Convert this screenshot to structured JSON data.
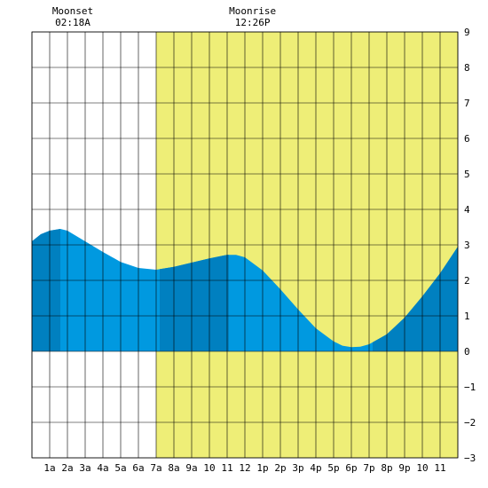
{
  "chart_data": {
    "type": "area",
    "title": "",
    "xlabel": "",
    "ylabel": "",
    "xlim": [
      0,
      24
    ],
    "ylim": [
      -3,
      9
    ],
    "yticks": [
      "9",
      "8",
      "7",
      "6",
      "5",
      "4",
      "3",
      "2",
      "1",
      "0",
      "−1",
      "−2",
      "−3"
    ],
    "xticks": [
      "1a",
      "2a",
      "3a",
      "4a",
      "5a",
      "6a",
      "7a",
      "8a",
      "9a",
      "10",
      "11",
      "12",
      "1p",
      "2p",
      "3p",
      "4p",
      "5p",
      "6p",
      "7p",
      "8p",
      "9p",
      "10",
      "11"
    ],
    "daylight": {
      "start": 7.0,
      "end": 24,
      "color": "#eeee77"
    },
    "night_color": "#ffffff",
    "grid": true,
    "annotations": [
      {
        "label": "Moonset",
        "time": "02:18A",
        "x": 2.3
      },
      {
        "label": "Moonrise",
        "time": "12:26P",
        "x": 12.43
      }
    ],
    "series": [
      {
        "values": [
          [
            0.0,
            3.1
          ],
          [
            0.5,
            3.3
          ],
          [
            1.0,
            3.4
          ],
          [
            1.6,
            3.45
          ],
          [
            2.0,
            3.4
          ],
          [
            3.0,
            3.1
          ],
          [
            4.0,
            2.8
          ],
          [
            5.0,
            2.52
          ],
          [
            6.0,
            2.35
          ],
          [
            7.0,
            2.3
          ],
          [
            8.0,
            2.38
          ],
          [
            9.0,
            2.5
          ],
          [
            10.0,
            2.62
          ],
          [
            11.0,
            2.72
          ],
          [
            11.5,
            2.72
          ],
          [
            12.0,
            2.65
          ],
          [
            13.0,
            2.28
          ],
          [
            14.0,
            1.75
          ],
          [
            15.0,
            1.18
          ],
          [
            16.0,
            0.65
          ],
          [
            17.0,
            0.28
          ],
          [
            17.5,
            0.16
          ],
          [
            18.0,
            0.12
          ],
          [
            18.5,
            0.13
          ],
          [
            19.0,
            0.2
          ],
          [
            20.0,
            0.48
          ],
          [
            21.0,
            0.95
          ],
          [
            22.0,
            1.55
          ],
          [
            23.0,
            2.2
          ],
          [
            24.0,
            2.95
          ]
        ]
      }
    ],
    "dark_bands": [
      [
        0,
        1.6
      ],
      [
        7.2,
        11.1
      ],
      [
        19.2,
        24
      ]
    ],
    "colors": {
      "tide": "#0099e0",
      "tide_dark": "#0080c0",
      "grid": "#000000"
    }
  }
}
